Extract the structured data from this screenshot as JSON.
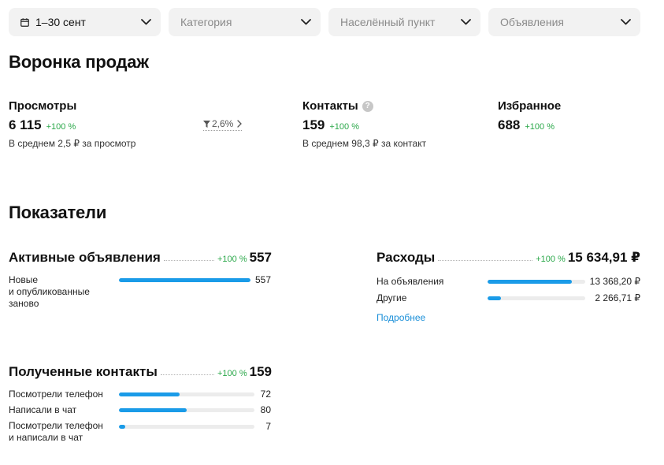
{
  "filters": [
    {
      "label": "1–30 сент",
      "icon": "calendar-icon",
      "selected": true
    },
    {
      "label": "Категория",
      "selected": false
    },
    {
      "label": "Населённый пункт",
      "selected": false
    },
    {
      "label": "Объявления",
      "selected": false
    }
  ],
  "funnel": {
    "title": "Воронка продаж",
    "views": {
      "title": "Просмотры",
      "value": "6 115",
      "change": "+100 %",
      "sub": "В среднем 2,5 ₽ за просмотр"
    },
    "conversion": {
      "value": "2,6%"
    },
    "contacts": {
      "title": "Контакты",
      "help": "?",
      "value": "159",
      "change": "+100 %",
      "sub": "В среднем 98,3 ₽ за контакт"
    },
    "favorites": {
      "title": "Избранное",
      "value": "688",
      "change": "+100 %"
    }
  },
  "indicators": {
    "title": "Показатели",
    "active": {
      "title": "Активные объявления",
      "change": "+100 %",
      "value": "557",
      "rows": [
        {
          "label": "Новые\nи опубликованные\nзаново",
          "value": "557",
          "fill": 1.0
        }
      ]
    },
    "expenses": {
      "title": "Расходы",
      "change": "+100 %",
      "value": "15 634,91 ₽",
      "rows": [
        {
          "label": "На объявления",
          "value": "13 368,20 ₽",
          "fill": 0.86
        },
        {
          "label": "Другие",
          "value": "2 266,71 ₽",
          "fill": 0.14
        }
      ],
      "link": "Подробнее"
    },
    "contacts": {
      "title": "Полученные контакты",
      "change": "+100 %",
      "value": "159",
      "rows": [
        {
          "label": "Посмотрели телефон",
          "value": "72",
          "fill": 0.45
        },
        {
          "label": "Написали в чат",
          "value": "80",
          "fill": 0.5
        },
        {
          "label": "Посмотрели телефон\nи написали в чат",
          "value": "7",
          "fill": 0.044
        }
      ]
    }
  },
  "colors": {
    "accent": "#1a9be8",
    "positive": "#2ba84a",
    "filter_bg": "#f2f2f2"
  }
}
